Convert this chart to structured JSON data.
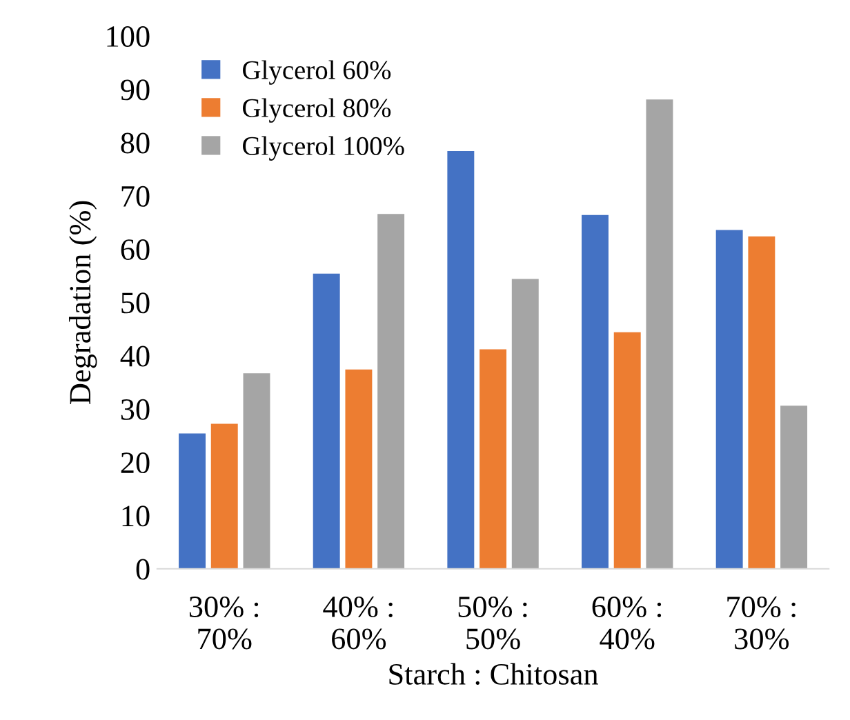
{
  "chart_data": {
    "type": "bar",
    "xlabel": "Starch : Chitosan",
    "ylabel": "Degradation (%)",
    "categories": [
      "30% :\n70%",
      "40% :\n60%",
      "50% :\n50%",
      "60% :\n40%",
      "70% :\n30%"
    ],
    "series": [
      {
        "name": "Glycerol 60%",
        "color": "#4472c4",
        "values": [
          25.4,
          55.4,
          78.4,
          66.4,
          63.6
        ]
      },
      {
        "name": "Glycerol 80%",
        "color": "#ed7d31",
        "values": [
          27.2,
          37.4,
          41.2,
          44.4,
          62.4
        ]
      },
      {
        "name": "Glycerol 100%",
        "color": "#a5a5a5",
        "values": [
          36.7,
          66.6,
          54.4,
          88.1,
          30.6
        ]
      }
    ],
    "ylim": [
      0,
      100
    ],
    "yticks": [
      0,
      10,
      20,
      30,
      40,
      50,
      60,
      70,
      80,
      90,
      100
    ],
    "grid": false,
    "legend": "top left"
  }
}
